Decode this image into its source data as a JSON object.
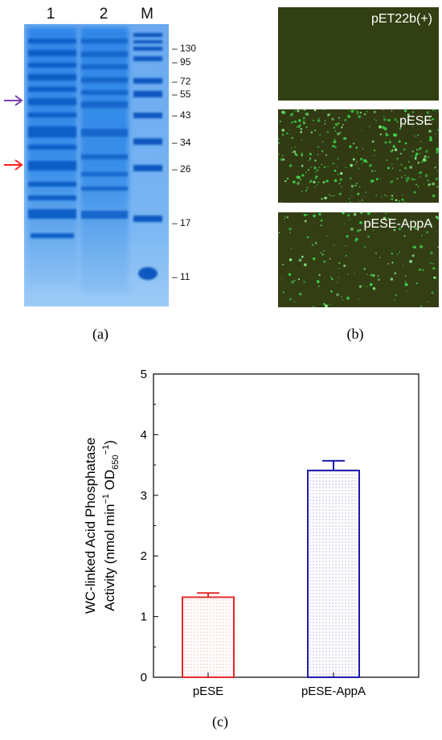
{
  "panel_a": {
    "label": "(a)",
    "lanes": [
      "1",
      "2",
      "M"
    ],
    "markers": [
      "130",
      "95",
      "72",
      "55",
      "43",
      "34",
      "26",
      "17",
      "11"
    ],
    "arrow_colors": {
      "purple": "#7b3fb5",
      "red": "#ff2020"
    }
  },
  "panel_b": {
    "label": "(b)",
    "images": [
      "pET22b(+)",
      "pESE",
      "pESE-AppA"
    ]
  },
  "panel_c": {
    "label": "(c)",
    "chart_data": {
      "type": "bar",
      "categories": [
        "pESE",
        "pESE-AppA"
      ],
      "values": [
        1.32,
        3.41
      ],
      "errors": [
        0.07,
        0.16
      ],
      "ylabel_line1": "WC-linked Acid Phosphatase",
      "ylabel_line2_prefix": "Activity (nmol min",
      "ylabel_sup1": "−1",
      "ylabel_mid": " OD",
      "ylabel_sub": "650",
      "ylabel_sup2": "−1",
      "ylabel_suffix": ")",
      "ylim": [
        0,
        5
      ],
      "yticks": [
        "0",
        "1",
        "2",
        "3",
        "4",
        "5"
      ],
      "bar_colors": [
        "#e52a2a",
        "#1c1caa"
      ],
      "grid": false
    }
  }
}
